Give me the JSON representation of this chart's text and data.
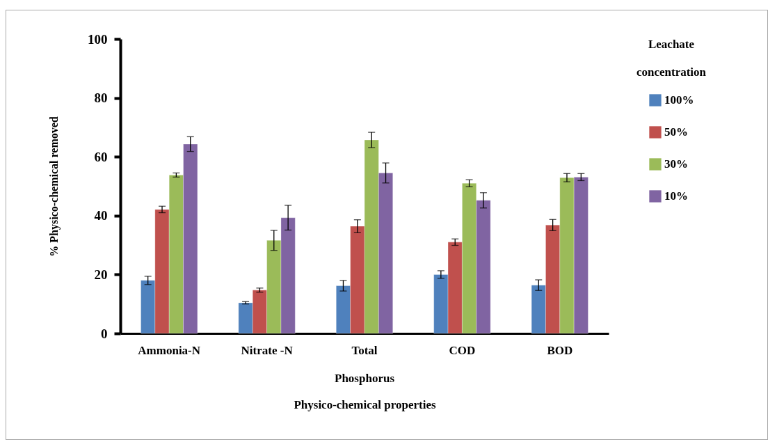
{
  "chart_data": {
    "type": "bar",
    "xlabel": "Physico-chemical properties",
    "ylabel": "% Physico-chemical removed",
    "legend_title": "Leachate concentration",
    "categories": [
      "Ammonia-N",
      "Nitrate -N",
      "Total\nPhosphorus",
      "COD",
      "BOD"
    ],
    "series": [
      {
        "name": "100%",
        "color": "#4f81bd",
        "values": [
          18.0,
          10.4,
          16.2,
          20.0,
          16.4
        ],
        "errors": [
          1.4,
          0.4,
          1.8,
          1.3,
          1.8
        ]
      },
      {
        "name": "50%",
        "color": "#c0504d",
        "values": [
          42.1,
          14.7,
          36.4,
          31.0,
          36.8
        ],
        "errors": [
          1.1,
          0.7,
          2.2,
          1.1,
          1.9
        ]
      },
      {
        "name": "30%",
        "color": "#9bbb59",
        "values": [
          53.8,
          31.6,
          65.7,
          51.0,
          52.9
        ],
        "errors": [
          0.7,
          3.4,
          2.6,
          1.2,
          1.4
        ]
      },
      {
        "name": "10%",
        "color": "#8064a2",
        "values": [
          64.3,
          39.3,
          54.5,
          45.2,
          53.1
        ],
        "errors": [
          2.5,
          4.2,
          3.4,
          2.6,
          1.2
        ]
      }
    ],
    "ylim": [
      0,
      100
    ],
    "yticks": [
      0,
      20,
      40,
      60,
      80,
      100
    ],
    "grid": false,
    "legend": "right"
  }
}
